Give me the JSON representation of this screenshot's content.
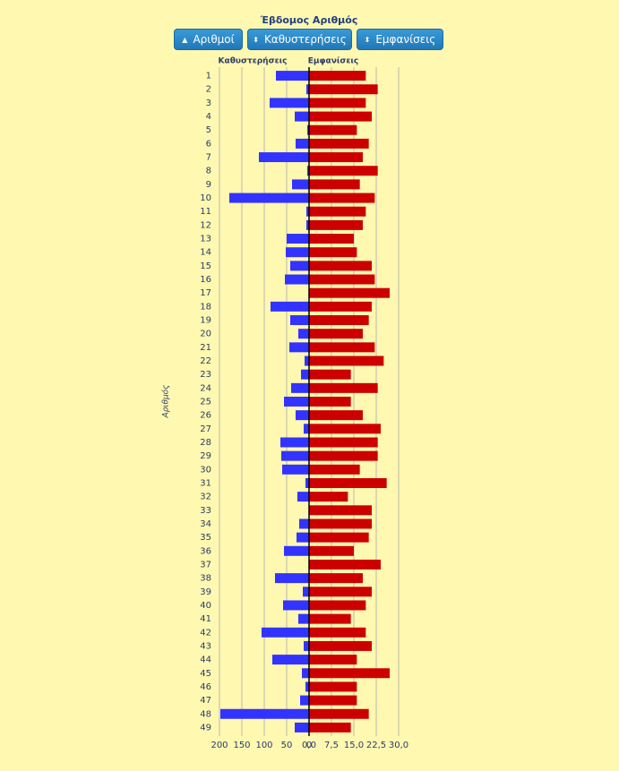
{
  "chart_data": {
    "type": "butterfly",
    "title": "Έβδομος Αριθμός",
    "buttons": [
      "Αριθμοί",
      "Καθυστερήσεις",
      "Εμφανίσεις"
    ],
    "y_label": "Αριθμός",
    "categories": [
      "1",
      "2",
      "3",
      "4",
      "5",
      "6",
      "7",
      "8",
      "9",
      "10",
      "11",
      "12",
      "13",
      "14",
      "15",
      "16",
      "17",
      "18",
      "19",
      "20",
      "21",
      "22",
      "23",
      "24",
      "25",
      "26",
      "27",
      "28",
      "29",
      "30",
      "31",
      "32",
      "33",
      "34",
      "35",
      "36",
      "37",
      "38",
      "39",
      "40",
      "41",
      "42",
      "43",
      "44",
      "45",
      "46",
      "47",
      "48",
      "49"
    ],
    "grid": true,
    "series": [
      {
        "name": "Καθυστερήσεις",
        "color": "#3333ff",
        "side": "left",
        "xlim": [
          0,
          200
        ],
        "xticks": [
          200,
          150,
          100,
          50,
          0
        ],
        "values": [
          74,
          6,
          88,
          32,
          4,
          30,
          112,
          4,
          38,
          178,
          6,
          6,
          50,
          52,
          42,
          54,
          0,
          86,
          42,
          24,
          44,
          10,
          18,
          40,
          56,
          30,
          12,
          64,
          62,
          60,
          8,
          26,
          0,
          22,
          28,
          56,
          0,
          76,
          14,
          58,
          24,
          106,
          12,
          82,
          16,
          8,
          20,
          198,
          32
        ]
      },
      {
        "name": "Εμφανίσεις",
        "color": "#cc0000",
        "side": "right",
        "xlim": [
          0,
          30
        ],
        "xticks": [
          {
            "value": 0,
            "label": "0,0"
          },
          {
            "value": 7.5,
            "label": "7,5"
          },
          {
            "value": 15,
            "label": "15,0"
          },
          {
            "value": 22.5,
            "label": "22,5"
          },
          {
            "value": 30,
            "label": "30,0"
          }
        ],
        "values": [
          19,
          23,
          19,
          21,
          16,
          20,
          18,
          23,
          17,
          22,
          19,
          18,
          15,
          16,
          21,
          22,
          27,
          21,
          20,
          18,
          22,
          25,
          14,
          23,
          14,
          18,
          24,
          23,
          23,
          17,
          26,
          13,
          21,
          21,
          20,
          15,
          24,
          18,
          21,
          19,
          14,
          19,
          21,
          16,
          27,
          16,
          16,
          20,
          14
        ]
      }
    ]
  }
}
